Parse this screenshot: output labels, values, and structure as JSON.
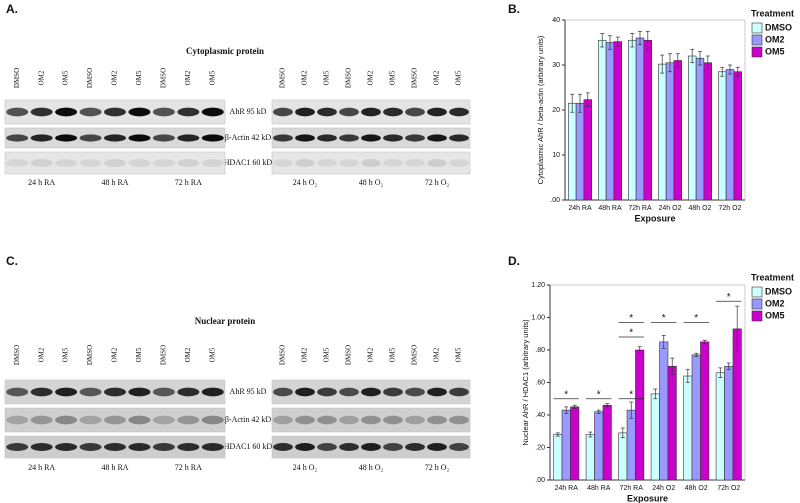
{
  "chart_data": [
    {
      "type": "bar",
      "panel": "B.",
      "y_label": "Cytoplasmic AhR / beta-actin (arbitrary units)",
      "x_label": "Exposure",
      "legend_title": "Treatment",
      "categories": [
        "24h RA",
        "48h RA",
        "72h RA",
        "24h O2",
        "48h O2",
        "72h O2"
      ],
      "series": [
        {
          "name": "DMSO",
          "color": "#ccffff",
          "values": [
            21.5,
            35.5,
            35.5,
            30.2,
            32,
            28.5
          ],
          "errors": [
            2,
            1.5,
            1.5,
            2,
            1.5,
            1
          ]
        },
        {
          "name": "OM2",
          "color": "#9999ff",
          "values": [
            21.5,
            35,
            36,
            30.5,
            31.5,
            29
          ],
          "errors": [
            2,
            1.5,
            1.5,
            2,
            1.5,
            1
          ]
        },
        {
          "name": "OM5",
          "color": "#cc00cc",
          "values": [
            22.3,
            35.2,
            35.5,
            31,
            30.5,
            28.5
          ],
          "errors": [
            1.5,
            1,
            2,
            1.5,
            1.5,
            1
          ]
        }
      ],
      "ylim": [
        0,
        40
      ],
      "yticks": [
        {
          "value": 0,
          "label": ".00"
        },
        10,
        20,
        30,
        40
      ]
    },
    {
      "type": "bar",
      "panel": "D.",
      "y_label": "Nuclear AhR / HDAC1 (arbitrary units)",
      "x_label": "Exposure",
      "legend_title": "Treatment",
      "categories": [
        "24h RA",
        "48h RA",
        "72h RA",
        "24h O2",
        "48h O2",
        "72h O2"
      ],
      "series": [
        {
          "name": "DMSO",
          "color": "#ccffff",
          "values": [
            0.28,
            0.28,
            0.29,
            0.53,
            0.64,
            0.66
          ],
          "errors": [
            0.01,
            0.015,
            0.03,
            0.03,
            0.04,
            0.03
          ]
        },
        {
          "name": "OM2",
          "color": "#9999ff",
          "values": [
            0.43,
            0.42,
            0.43,
            0.85,
            0.77,
            0.7
          ],
          "errors": [
            0.02,
            0.01,
            0.05,
            0.04,
            0.01,
            0.02
          ]
        },
        {
          "name": "OM5",
          "color": "#cc00cc",
          "values": [
            0.45,
            0.46,
            0.8,
            0.7,
            0.85,
            0.93
          ],
          "errors": [
            0.01,
            0.01,
            0.02,
            0.05,
            0.01,
            0.14
          ]
        }
      ],
      "ylim": [
        0,
        1.2
      ],
      "yticks": [
        {
          "value": 0,
          "label": ".00"
        },
        {
          "value": 0.2,
          "label": ".20"
        },
        {
          "value": 0.4,
          "label": ".40"
        },
        {
          "value": 0.6,
          "label": ".60"
        },
        {
          "value": 0.8,
          "label": ".80"
        },
        {
          "value": 1,
          "label": "1.00"
        },
        {
          "value": 1.2,
          "label": "1.20"
        }
      ],
      "annotations": [
        {
          "text": "*",
          "category": "24h RA",
          "y": 0.5
        },
        {
          "text": "*",
          "category": "48h RA",
          "y": 0.5
        },
        {
          "text": "*",
          "category": "72h RA",
          "y": 0.5
        },
        {
          "text": "*",
          "category": "72h RA",
          "y": 0.88
        },
        {
          "text": "*",
          "category": "72h RA",
          "y": 0.97
        },
        {
          "text": "*",
          "category": "24h O2",
          "y": 0.97
        },
        {
          "text": "*",
          "category": "48h O2",
          "y": 0.97
        },
        {
          "text": "*",
          "category": "72h O2",
          "y": 1.1
        }
      ]
    }
  ],
  "blots": [
    {
      "panel": "A.",
      "title": "Cytoplasmic protein",
      "lanes": [
        "DMSO",
        "OM2",
        "OM5"
      ],
      "rows": [
        "AhR 95 kD",
        "β-Actin 42 kD",
        "HDAC1 60 kD"
      ],
      "times_left": [
        "24 h  RA",
        "48 h  RA",
        "72 h  RA"
      ],
      "times_right": [
        "24 h  O₂",
        "48 h  O₂",
        "72 h  O₂"
      ]
    },
    {
      "panel": "C.",
      "title": "Nuclear protein",
      "lanes": [
        "DMSO",
        "OM2",
        "OM5"
      ],
      "rows": [
        "AhR 95 kD",
        "β-Actin 42 kD",
        "HDAC1 60 kD"
      ],
      "times_left": [
        "24 h  RA",
        "48 h  RA",
        "72 h  RA"
      ],
      "times_right": [
        "24 h  O₂",
        "48 h  O₂",
        "72 h  O₂"
      ]
    }
  ]
}
